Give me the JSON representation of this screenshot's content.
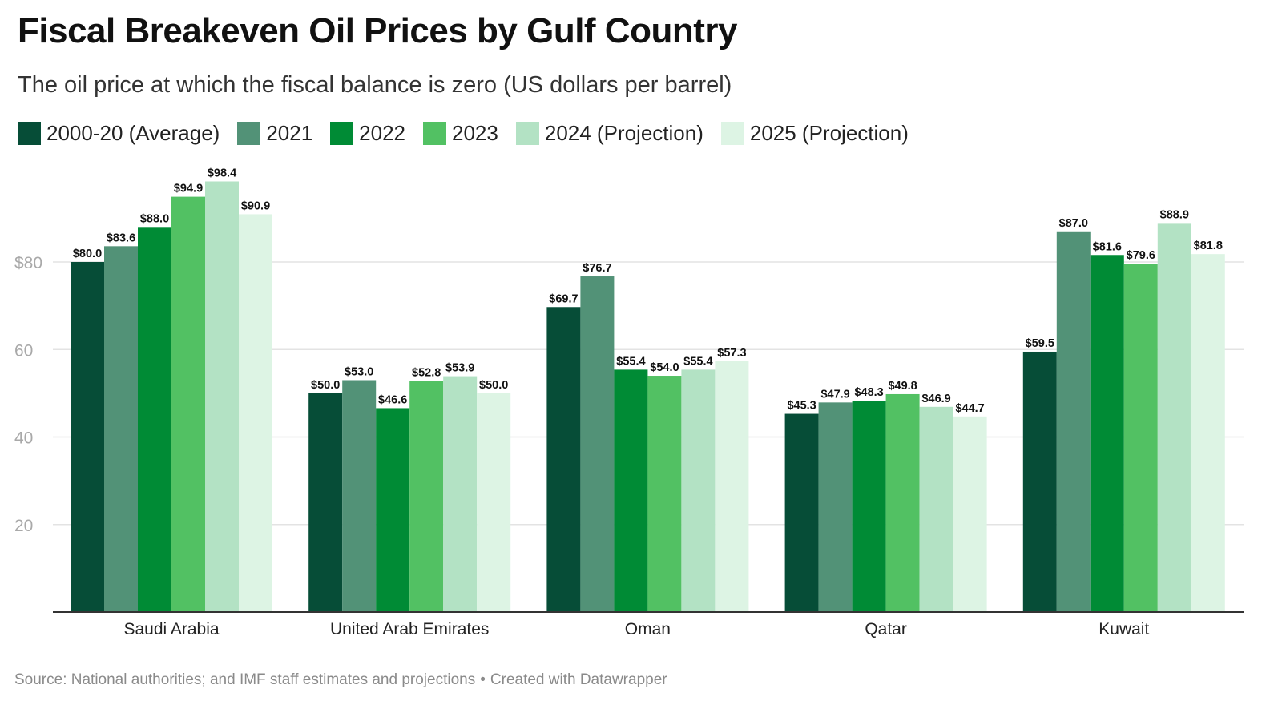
{
  "header": {
    "title": "Fiscal Breakeven Oil Prices by Gulf Country",
    "subtitle": "The oil price at which the fiscal balance is zero (US dollars per barrel)"
  },
  "legend": {
    "items": [
      {
        "label": "2000-20 (Average)",
        "color": "#064d37"
      },
      {
        "label": "2021",
        "color": "#529277"
      },
      {
        "label": "2022",
        "color": "#008b35"
      },
      {
        "label": "2023",
        "color": "#52c163"
      },
      {
        "label": "2024 (Projection)",
        "color": "#b3e2c4"
      },
      {
        "label": "2025 (Projection)",
        "color": "#ddf4e4"
      }
    ]
  },
  "footer": {
    "source": "Source: National authorities; and IMF staff estimates and projections",
    "separator": "•",
    "credit": "Created with Datawrapper"
  },
  "chart_data": {
    "type": "bar",
    "title": "Fiscal Breakeven Oil Prices by Gulf Country",
    "subtitle": "The oil price at which the fiscal balance is zero (US dollars per barrel)",
    "categories": [
      "Saudi Arabia",
      "United Arab Emirates",
      "Oman",
      "Qatar",
      "Kuwait"
    ],
    "series": [
      {
        "name": "2000-20 (Average)",
        "color": "#064d37",
        "values": [
          80.0,
          50.0,
          69.7,
          45.3,
          59.5
        ]
      },
      {
        "name": "2021",
        "color": "#529277",
        "values": [
          83.6,
          53.0,
          76.7,
          47.9,
          87.0
        ]
      },
      {
        "name": "2022",
        "color": "#008b35",
        "values": [
          88.0,
          46.6,
          55.4,
          48.3,
          81.6
        ]
      },
      {
        "name": "2023",
        "color": "#52c163",
        "values": [
          94.9,
          52.8,
          54.0,
          49.8,
          79.6
        ]
      },
      {
        "name": "2024 (Projection)",
        "color": "#b3e2c4",
        "values": [
          98.4,
          53.9,
          55.4,
          46.9,
          88.9
        ]
      },
      {
        "name": "2025 (Projection)",
        "color": "#ddf4e4",
        "values": [
          90.9,
          50.0,
          57.3,
          44.7,
          81.8
        ]
      }
    ],
    "value_labels": [
      [
        "$80.0",
        "$50.0",
        "$69.7",
        "$45.3",
        "$59.5"
      ],
      [
        "$83.6",
        "$53.0",
        "$76.7",
        "$47.9",
        "$87.0"
      ],
      [
        "$88.0",
        "$46.6",
        "$55.4",
        "$48.3",
        "$81.6"
      ],
      [
        "$94.9",
        "$52.8",
        "$54.0",
        "$49.8",
        "$79.6"
      ],
      [
        "$98.4",
        "$53.9",
        "$55.4",
        "$46.9",
        "$88.9"
      ],
      [
        "$90.9",
        "$50.0",
        "$57.3",
        "$44.7",
        "$81.8"
      ]
    ],
    "yticks": [
      20,
      40,
      60,
      80
    ],
    "ytick_labels": [
      "20",
      "40",
      "60",
      "$80"
    ],
    "ylim": [
      0,
      100
    ],
    "xlabel": "",
    "ylabel": "",
    "grid": true,
    "legend_position": "top-left"
  }
}
